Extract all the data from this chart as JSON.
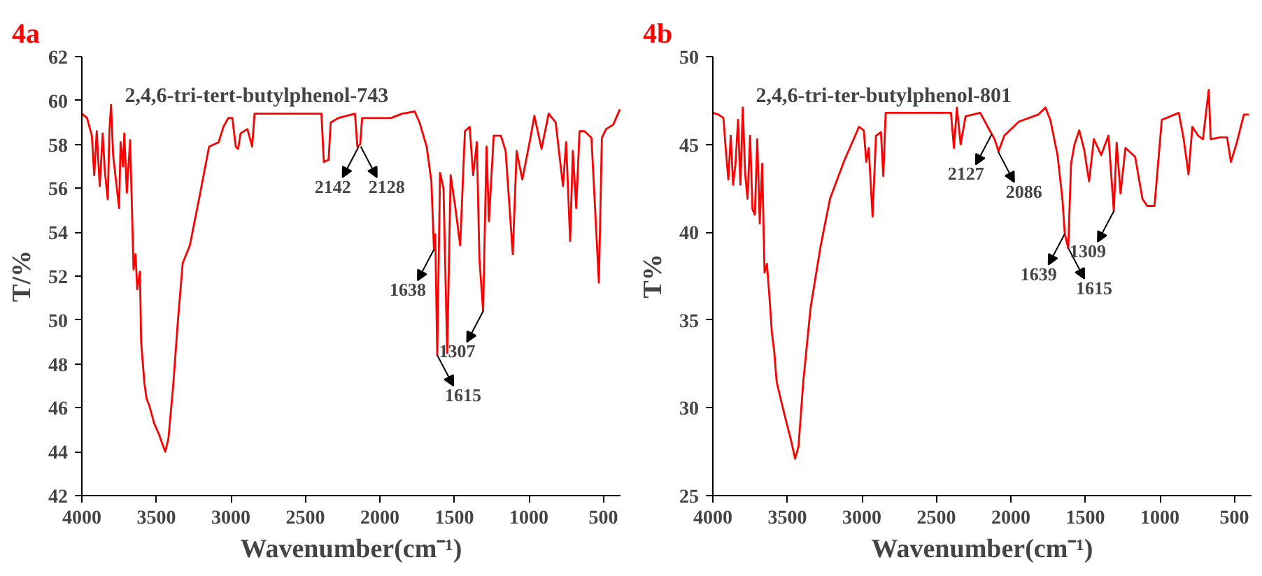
{
  "chart_data": [
    {
      "type": "line",
      "title": "4a",
      "xlabel": "Wavenumber(cm⁻¹)",
      "ylabel": "T/%",
      "xlim": [
        4000,
        385
      ],
      "xticks": [
        4000,
        3500,
        3000,
        2500,
        2000,
        1500,
        1000,
        500
      ],
      "ylim": [
        42,
        62
      ],
      "yticks": [
        42,
        44,
        46,
        48,
        50,
        52,
        54,
        56,
        58,
        60,
        62
      ],
      "grid": false,
      "marker": "none",
      "line_style": "solid",
      "annotations": [
        "2,4,6-tri-tert-butylphenol-743",
        {
          "text": "2142",
          "x": 2142,
          "y": 57.9
        },
        {
          "text": "2128",
          "x": 2128,
          "y": 57.9
        },
        {
          "text": "1638",
          "x": 1638,
          "y": 53.2
        },
        {
          "text": "1615",
          "x": 1615,
          "y": 48.4
        },
        {
          "text": "1307",
          "x": 1307,
          "y": 50.4
        }
      ],
      "series": [
        {
          "color": "#ff0000",
          "x": [
            4000,
            3965,
            3933,
            3917,
            3900,
            3880,
            3860,
            3846,
            3826,
            3815,
            3804,
            3790,
            3750,
            3740,
            3724,
            3715,
            3698,
            3676,
            3665,
            3653,
            3640,
            3628,
            3610,
            3602,
            3580,
            3565,
            3547,
            3515,
            3483,
            3451,
            3440,
            3419,
            3387,
            3355,
            3323,
            3275,
            3211,
            3146,
            3082,
            3050,
            3018,
            2990,
            2967,
            2951,
            2935,
            2889,
            2857,
            2841,
            2600,
            2392,
            2376,
            2344,
            2330,
            2280,
            2167,
            2151,
            2132,
            2119,
            1926,
            1850,
            1766,
            1734,
            1686,
            1654,
            1637,
            1628,
            1615,
            1596,
            1573,
            1548,
            1525,
            1493,
            1461,
            1429,
            1397,
            1374,
            1349,
            1332,
            1307,
            1284,
            1268,
            1236,
            1188,
            1156,
            1108,
            1082,
            1044,
            995,
            963,
            915,
            867,
            820,
            771,
            750,
            723,
            705,
            682,
            660,
            626,
            580,
            530,
            510,
            482,
            434,
            389
          ],
          "values": [
            59.4,
            59.2,
            58.4,
            56.6,
            58.6,
            56.1,
            58.5,
            56.8,
            55.5,
            58.6,
            59.8,
            57.5,
            55.1,
            58.1,
            57.0,
            58.5,
            55.8,
            58.2,
            55.4,
            52.3,
            53.0,
            51.4,
            52.2,
            49.0,
            47.1,
            46.4,
            46.1,
            45.3,
            44.8,
            44.2,
            44.0,
            44.6,
            47.0,
            50.0,
            52.6,
            53.4,
            55.6,
            57.9,
            58.1,
            58.8,
            59.2,
            59.2,
            57.9,
            57.8,
            58.5,
            58.7,
            57.9,
            59.4,
            59.4,
            59.4,
            57.2,
            57.3,
            59.0,
            59.2,
            59.4,
            57.9,
            58.0,
            59.2,
            59.2,
            59.4,
            59.5,
            59.0,
            57.9,
            56.3,
            53.2,
            53.9,
            48.4,
            56.7,
            56.0,
            48.5,
            56.6,
            55.1,
            53.4,
            58.6,
            58.8,
            56.6,
            58.1,
            52.8,
            50.4,
            57.9,
            54.5,
            58.4,
            58.4,
            57.7,
            53.0,
            57.7,
            56.4,
            58.1,
            59.3,
            57.8,
            59.4,
            59.0,
            56.1,
            58.1,
            53.6,
            57.7,
            55.1,
            58.6,
            58.6,
            58.3,
            51.7,
            58.3,
            58.7,
            58.9,
            59.6
          ]
        }
      ]
    },
    {
      "type": "line",
      "title": "4b",
      "xlabel": "Wavenumber(cm⁻¹)",
      "ylabel": "T%",
      "xlim": [
        4000,
        385
      ],
      "xticks": [
        4000,
        3500,
        3000,
        2500,
        2000,
        1500,
        1000,
        500
      ],
      "ylim": [
        25,
        50
      ],
      "yticks": [
        25,
        30,
        35,
        40,
        45,
        50
      ],
      "grid": false,
      "marker": "none",
      "line_style": "solid",
      "annotations": [
        "2,4,6-tri-ter-butylphenol-801",
        {
          "text": "2127",
          "x": 2127,
          "y": 45.6
        },
        {
          "text": "2086",
          "x": 2086,
          "y": 44.6
        },
        {
          "text": "1639",
          "x": 1639,
          "y": 39.9
        },
        {
          "text": "1615",
          "x": 1615,
          "y": 39.1
        },
        {
          "text": "1309",
          "x": 1309,
          "y": 41.2
        }
      ],
      "series": [
        {
          "color": "#ff0000",
          "x": [
            4000,
            3962,
            3929,
            3913,
            3896,
            3880,
            3864,
            3848,
            3831,
            3815,
            3799,
            3783,
            3767,
            3750,
            3734,
            3718,
            3702,
            3685,
            3669,
            3653,
            3637,
            3620,
            3604,
            3588,
            3572,
            3539,
            3507,
            3474,
            3448,
            3425,
            3393,
            3344,
            3279,
            3214,
            3117,
            3019,
            2987,
            2970,
            2954,
            2928,
            2905,
            2872,
            2856,
            2840,
            2600,
            2402,
            2382,
            2362,
            2337,
            2304,
            2206,
            2142,
            2109,
            2083,
            2044,
            1946,
            1816,
            1768,
            1735,
            1687,
            1654,
            1638,
            1615,
            1596,
            1573,
            1541,
            1508,
            1475,
            1443,
            1394,
            1345,
            1309,
            1290,
            1264,
            1231,
            1166,
            1117,
            1085,
            1036,
            987,
            873,
            840,
            808,
            782,
            743,
            711,
            672,
            659,
            597,
            549,
            523,
            484,
            436,
            403
          ],
          "values": [
            46.8,
            46.7,
            46.5,
            44.7,
            43.0,
            45.5,
            42.7,
            43.9,
            46.4,
            42.7,
            47.1,
            43.3,
            41.9,
            45.5,
            41.3,
            41.0,
            45.3,
            40.5,
            43.9,
            37.7,
            38.2,
            36.3,
            34.3,
            33.2,
            31.5,
            30.3,
            29.2,
            28.1,
            27.1,
            27.8,
            31.5,
            35.7,
            39.1,
            41.9,
            44.1,
            46.0,
            45.8,
            44.0,
            44.8,
            40.9,
            45.5,
            45.7,
            43.2,
            46.8,
            46.8,
            46.8,
            44.8,
            47.1,
            45.0,
            46.6,
            46.8,
            45.8,
            45.3,
            44.6,
            45.5,
            46.3,
            46.7,
            47.1,
            46.4,
            44.4,
            41.9,
            39.9,
            39.1,
            43.9,
            45.0,
            45.8,
            44.7,
            42.9,
            45.3,
            44.4,
            45.5,
            41.2,
            45.1,
            42.2,
            44.8,
            44.3,
            41.9,
            41.5,
            41.5,
            46.4,
            46.8,
            45.3,
            43.3,
            46.0,
            45.5,
            45.3,
            48.1,
            45.3,
            45.4,
            45.4,
            44.0,
            45.1,
            46.7,
            46.7
          ]
        }
      ]
    }
  ]
}
